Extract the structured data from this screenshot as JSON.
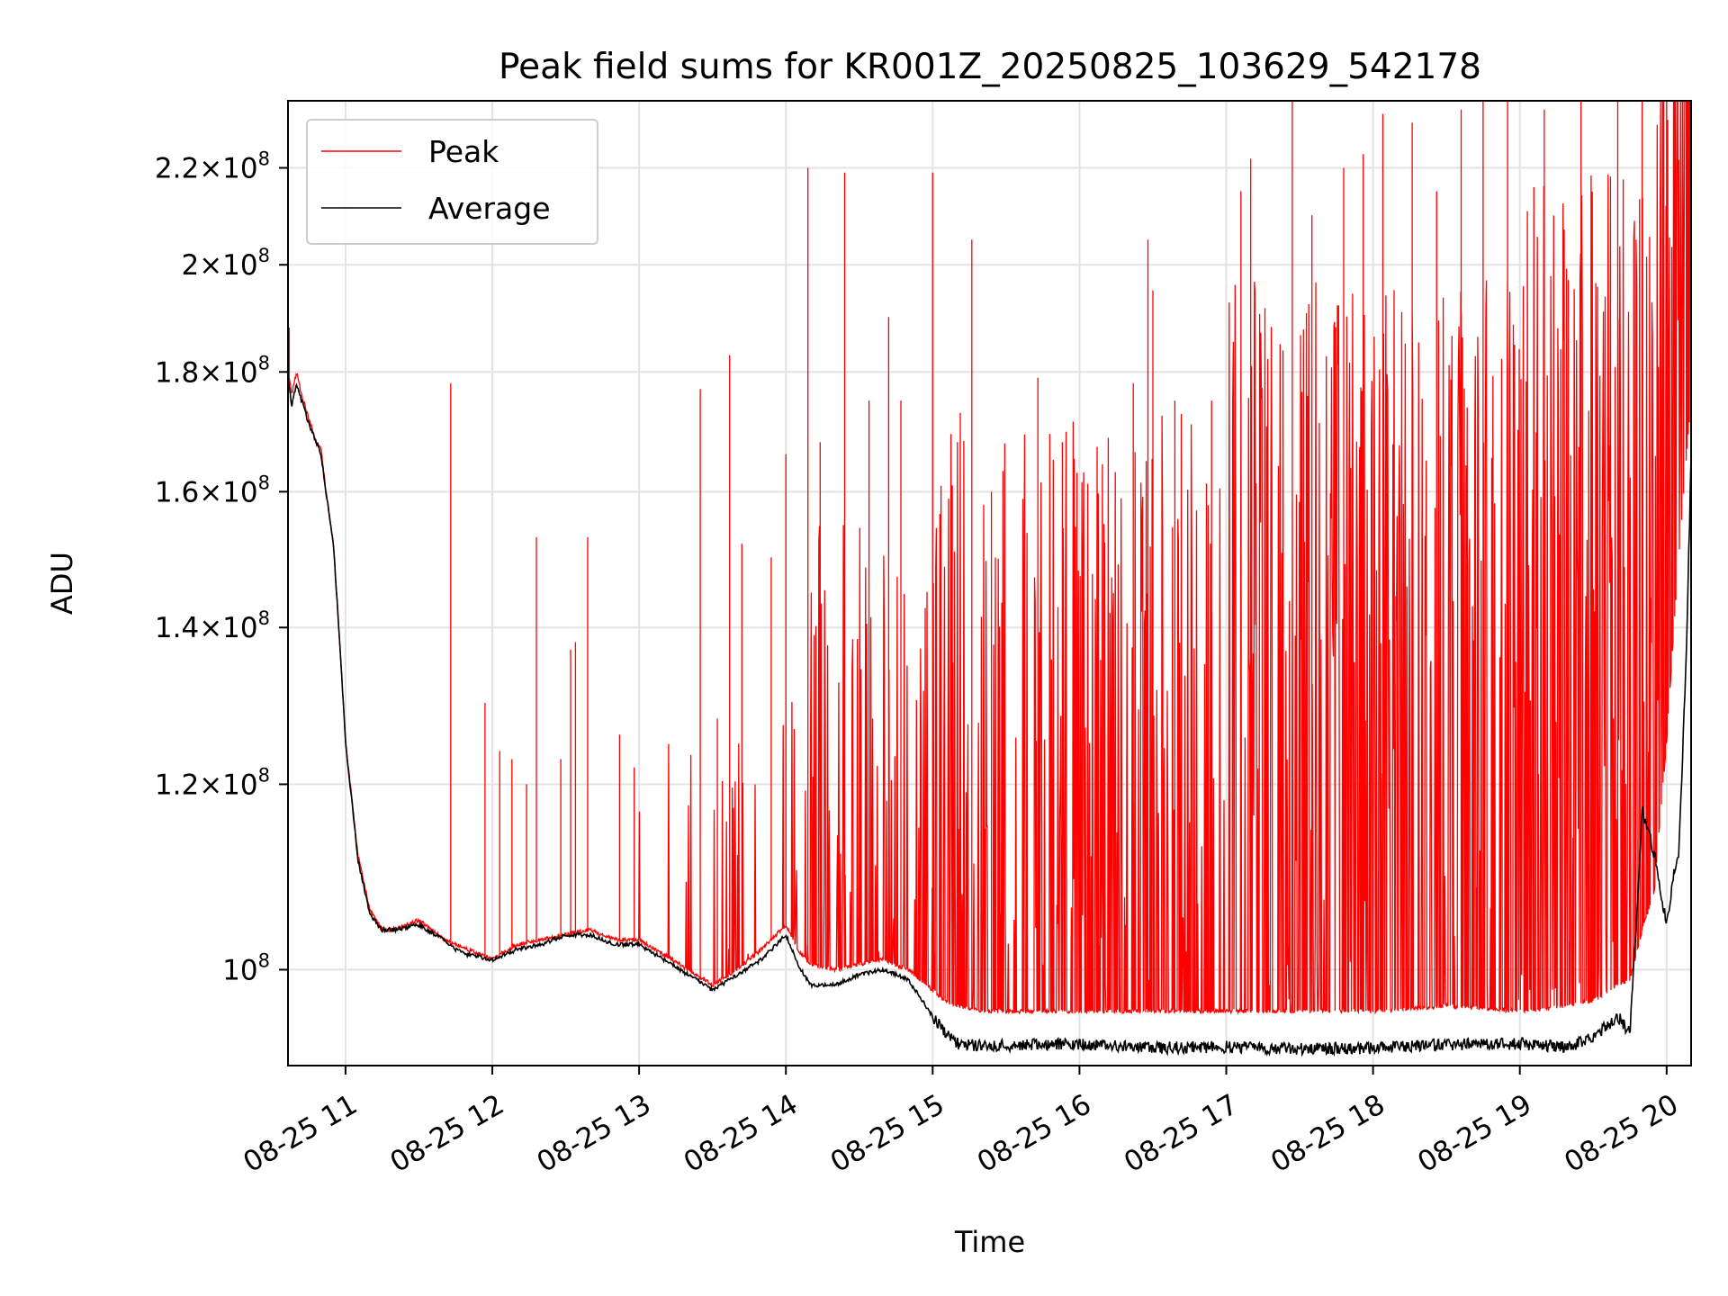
{
  "chart_data": {
    "type": "line",
    "title": "Peak field sums for KR001Z_20250825_103629_542178",
    "xlabel": "Time",
    "ylabel": "ADU",
    "yscale": "log",
    "grid": true,
    "legend_position": "upper left",
    "xlim": [
      "2025-08-25 10:36:29",
      "2025-08-25 20:10:00"
    ],
    "ylim": [
      91000000,
      235000000
    ],
    "x_ticks": [
      {
        "value": "2025-08-25 11:00",
        "label": "08-25 11"
      },
      {
        "value": "2025-08-25 12:00",
        "label": "08-25 12"
      },
      {
        "value": "2025-08-25 13:00",
        "label": "08-25 13"
      },
      {
        "value": "2025-08-25 14:00",
        "label": "08-25 14"
      },
      {
        "value": "2025-08-25 15:00",
        "label": "08-25 15"
      },
      {
        "value": "2025-08-25 16:00",
        "label": "08-25 16"
      },
      {
        "value": "2025-08-25 17:00",
        "label": "08-25 17"
      },
      {
        "value": "2025-08-25 18:00",
        "label": "08-25 18"
      },
      {
        "value": "2025-08-25 19:00",
        "label": "08-25 19"
      },
      {
        "value": "2025-08-25 20:00",
        "label": "08-25 20"
      }
    ],
    "y_ticks": [
      {
        "value": 100000000,
        "mant": "",
        "exp": "8"
      },
      {
        "value": 120000000,
        "mant": "1.2",
        "exp": "8"
      },
      {
        "value": 140000000,
        "mant": "1.4",
        "exp": "8"
      },
      {
        "value": 160000000,
        "mant": "1.6",
        "exp": "8"
      },
      {
        "value": 180000000,
        "mant": "1.8",
        "exp": "8"
      },
      {
        "value": 200000000,
        "mant": "2",
        "exp": "8"
      },
      {
        "value": 220000000,
        "mant": "2.2",
        "exp": "8"
      }
    ],
    "series": [
      {
        "name": "Peak",
        "color": "#ff0000",
        "x": [
          "10:36",
          "10:38",
          "10:40",
          "10:42",
          "10:45",
          "10:48",
          "10:50",
          "10:52",
          "10:55",
          "11:00",
          "11:05",
          "11:10",
          "11:15",
          "11:20",
          "11:30",
          "11:40",
          "11:45",
          "11:50",
          "12:00",
          "12:10",
          "12:20",
          "12:30",
          "12:40",
          "12:45",
          "12:50",
          "13:00",
          "13:10",
          "13:20",
          "13:30",
          "13:40",
          "13:50",
          "14:00",
          "14:05",
          "14:10",
          "14:20",
          "14:30",
          "14:40",
          "14:50",
          "15:00",
          "15:05",
          "15:10",
          "15:20",
          "15:30",
          "16:00",
          "16:30",
          "17:00",
          "17:30",
          "18:00",
          "18:30",
          "19:00",
          "19:20",
          "19:30",
          "19:40",
          "19:45",
          "19:50",
          "19:55",
          "20:00",
          "20:05",
          "20:10"
        ],
        "y": [
          182000000,
          176000000,
          180000000,
          176000000,
          172000000,
          168000000,
          167000000,
          160000000,
          152000000,
          125000000,
          112000000,
          106000000,
          104000000,
          104000000,
          105000000,
          103000000,
          102500000,
          102000000,
          101000000,
          102500000,
          103000000,
          103500000,
          104000000,
          103500000,
          103000000,
          103000000,
          101500000,
          100000000,
          98500000,
          100000000,
          102000000,
          104500000,
          102000000,
          100500000,
          100000000,
          100500000,
          101000000,
          100000000,
          98000000,
          97000000,
          96500000,
          96000000,
          96000000,
          96000000,
          96000000,
          96000000,
          96000000,
          96000000,
          96500000,
          96000000,
          96500000,
          97000000,
          98500000,
          99000000,
          104000000,
          108000000,
          125000000,
          150000000,
          175000000
        ],
        "spike_ranges": [
          [
            98000000,
            235000000
          ],
          [
            98000000,
            235000000
          ]
        ],
        "spikes": [
          {
            "x": "10:37",
            "y": 188000000
          },
          {
            "x": "11:43",
            "y": 178000000
          },
          {
            "x": "11:57",
            "y": 130000000
          },
          {
            "x": "12:03",
            "y": 124000000
          },
          {
            "x": "12:08",
            "y": 123000000
          },
          {
            "x": "12:14",
            "y": 120000000
          },
          {
            "x": "12:18",
            "y": 153000000
          },
          {
            "x": "12:28",
            "y": 123000000
          },
          {
            "x": "12:32",
            "y": 137000000
          },
          {
            "x": "12:34",
            "y": 138000000
          },
          {
            "x": "12:39",
            "y": 153000000
          },
          {
            "x": "12:52",
            "y": 126000000
          },
          {
            "x": "12:58",
            "y": 122000000
          },
          {
            "x": "13:25",
            "y": 177000000
          },
          {
            "x": "13:32",
            "y": 128000000
          },
          {
            "x": "13:37",
            "y": 183000000
          },
          {
            "x": "13:42",
            "y": 152000000
          },
          {
            "x": "13:54",
            "y": 150000000
          },
          {
            "x": "14:00",
            "y": 166000000
          },
          {
            "x": "14:09",
            "y": 220000000
          },
          {
            "x": "14:14",
            "y": 168000000
          },
          {
            "x": "14:24",
            "y": 219000000
          },
          {
            "x": "14:34",
            "y": 175000000
          },
          {
            "x": "14:42",
            "y": 190000000
          },
          {
            "x": "14:47",
            "y": 175000000
          },
          {
            "x": "15:00",
            "y": 219000000
          },
          {
            "x": "15:08",
            "y": 161000000
          },
          {
            "x": "15:16",
            "y": 205000000
          },
          {
            "x": "15:24",
            "y": 160000000
          },
          {
            "x": "15:43",
            "y": 179000000
          },
          {
            "x": "15:53",
            "y": 168000000
          },
          {
            "x": "15:59",
            "y": 163000000
          },
          {
            "x": "16:10",
            "y": 155000000
          },
          {
            "x": "16:22",
            "y": 178000000
          },
          {
            "x": "16:28",
            "y": 205000000
          },
          {
            "x": "16:30",
            "y": 195000000
          },
          {
            "x": "16:39",
            "y": 175000000
          },
          {
            "x": "16:54",
            "y": 175000000
          },
          {
            "x": "17:06",
            "y": 215000000
          },
          {
            "x": "17:10",
            "y": 222000000
          },
          {
            "x": "17:27",
            "y": 235000000
          },
          {
            "x": "17:35",
            "y": 210000000
          },
          {
            "x": "17:48",
            "y": 220000000
          },
          {
            "x": "17:56",
            "y": 223000000
          },
          {
            "x": "18:04",
            "y": 232000000
          },
          {
            "x": "18:16",
            "y": 230000000
          },
          {
            "x": "18:26",
            "y": 215000000
          },
          {
            "x": "18:36",
            "y": 233000000
          },
          {
            "x": "18:45",
            "y": 235000000
          },
          {
            "x": "18:55",
            "y": 235000000
          },
          {
            "x": "19:10",
            "y": 233000000
          },
          {
            "x": "19:25",
            "y": 235000000
          },
          {
            "x": "19:40",
            "y": 235000000
          },
          {
            "x": "19:50",
            "y": 235000000
          },
          {
            "x": "20:00",
            "y": 235000000
          },
          {
            "x": "20:08",
            "y": 235000000
          }
        ]
      },
      {
        "name": "Average",
        "color": "#000000",
        "x": [
          "10:36",
          "10:38",
          "10:40",
          "10:42",
          "10:45",
          "10:48",
          "10:50",
          "10:52",
          "10:55",
          "11:00",
          "11:05",
          "11:10",
          "11:15",
          "11:20",
          "11:30",
          "11:40",
          "11:45",
          "11:50",
          "12:00",
          "12:10",
          "12:20",
          "12:30",
          "12:40",
          "12:45",
          "12:50",
          "13:00",
          "13:10",
          "13:20",
          "13:30",
          "13:40",
          "13:50",
          "14:00",
          "14:05",
          "14:10",
          "14:20",
          "14:30",
          "14:40",
          "14:50",
          "15:00",
          "15:05",
          "15:10",
          "15:20",
          "15:30",
          "16:00",
          "16:30",
          "17:00",
          "17:30",
          "18:00",
          "18:30",
          "19:00",
          "19:20",
          "19:30",
          "19:40",
          "19:45",
          "19:48",
          "19:50",
          "19:55",
          "20:00",
          "20:03",
          "20:05",
          "20:08",
          "20:10"
        ],
        "y": [
          181000000,
          174000000,
          178000000,
          175000000,
          171000000,
          168000000,
          166000000,
          160000000,
          152000000,
          125000000,
          111500000,
          105500000,
          104000000,
          104000000,
          104500000,
          103000000,
          102000000,
          101500000,
          101000000,
          102000000,
          102500000,
          103500000,
          103500000,
          103000000,
          102500000,
          102500000,
          101000000,
          99500000,
          98000000,
          99500000,
          101000000,
          103500000,
          100500000,
          98500000,
          98500000,
          99500000,
          100000000,
          99000000,
          95500000,
          94000000,
          93000000,
          92800000,
          92800000,
          93000000,
          92600000,
          92700000,
          92500000,
          92600000,
          92900000,
          93000000,
          92700000,
          93500000,
          95500000,
          94000000,
          106000000,
          117000000,
          112000000,
          104500000,
          110000000,
          112000000,
          135000000,
          165000000
        ]
      }
    ]
  }
}
